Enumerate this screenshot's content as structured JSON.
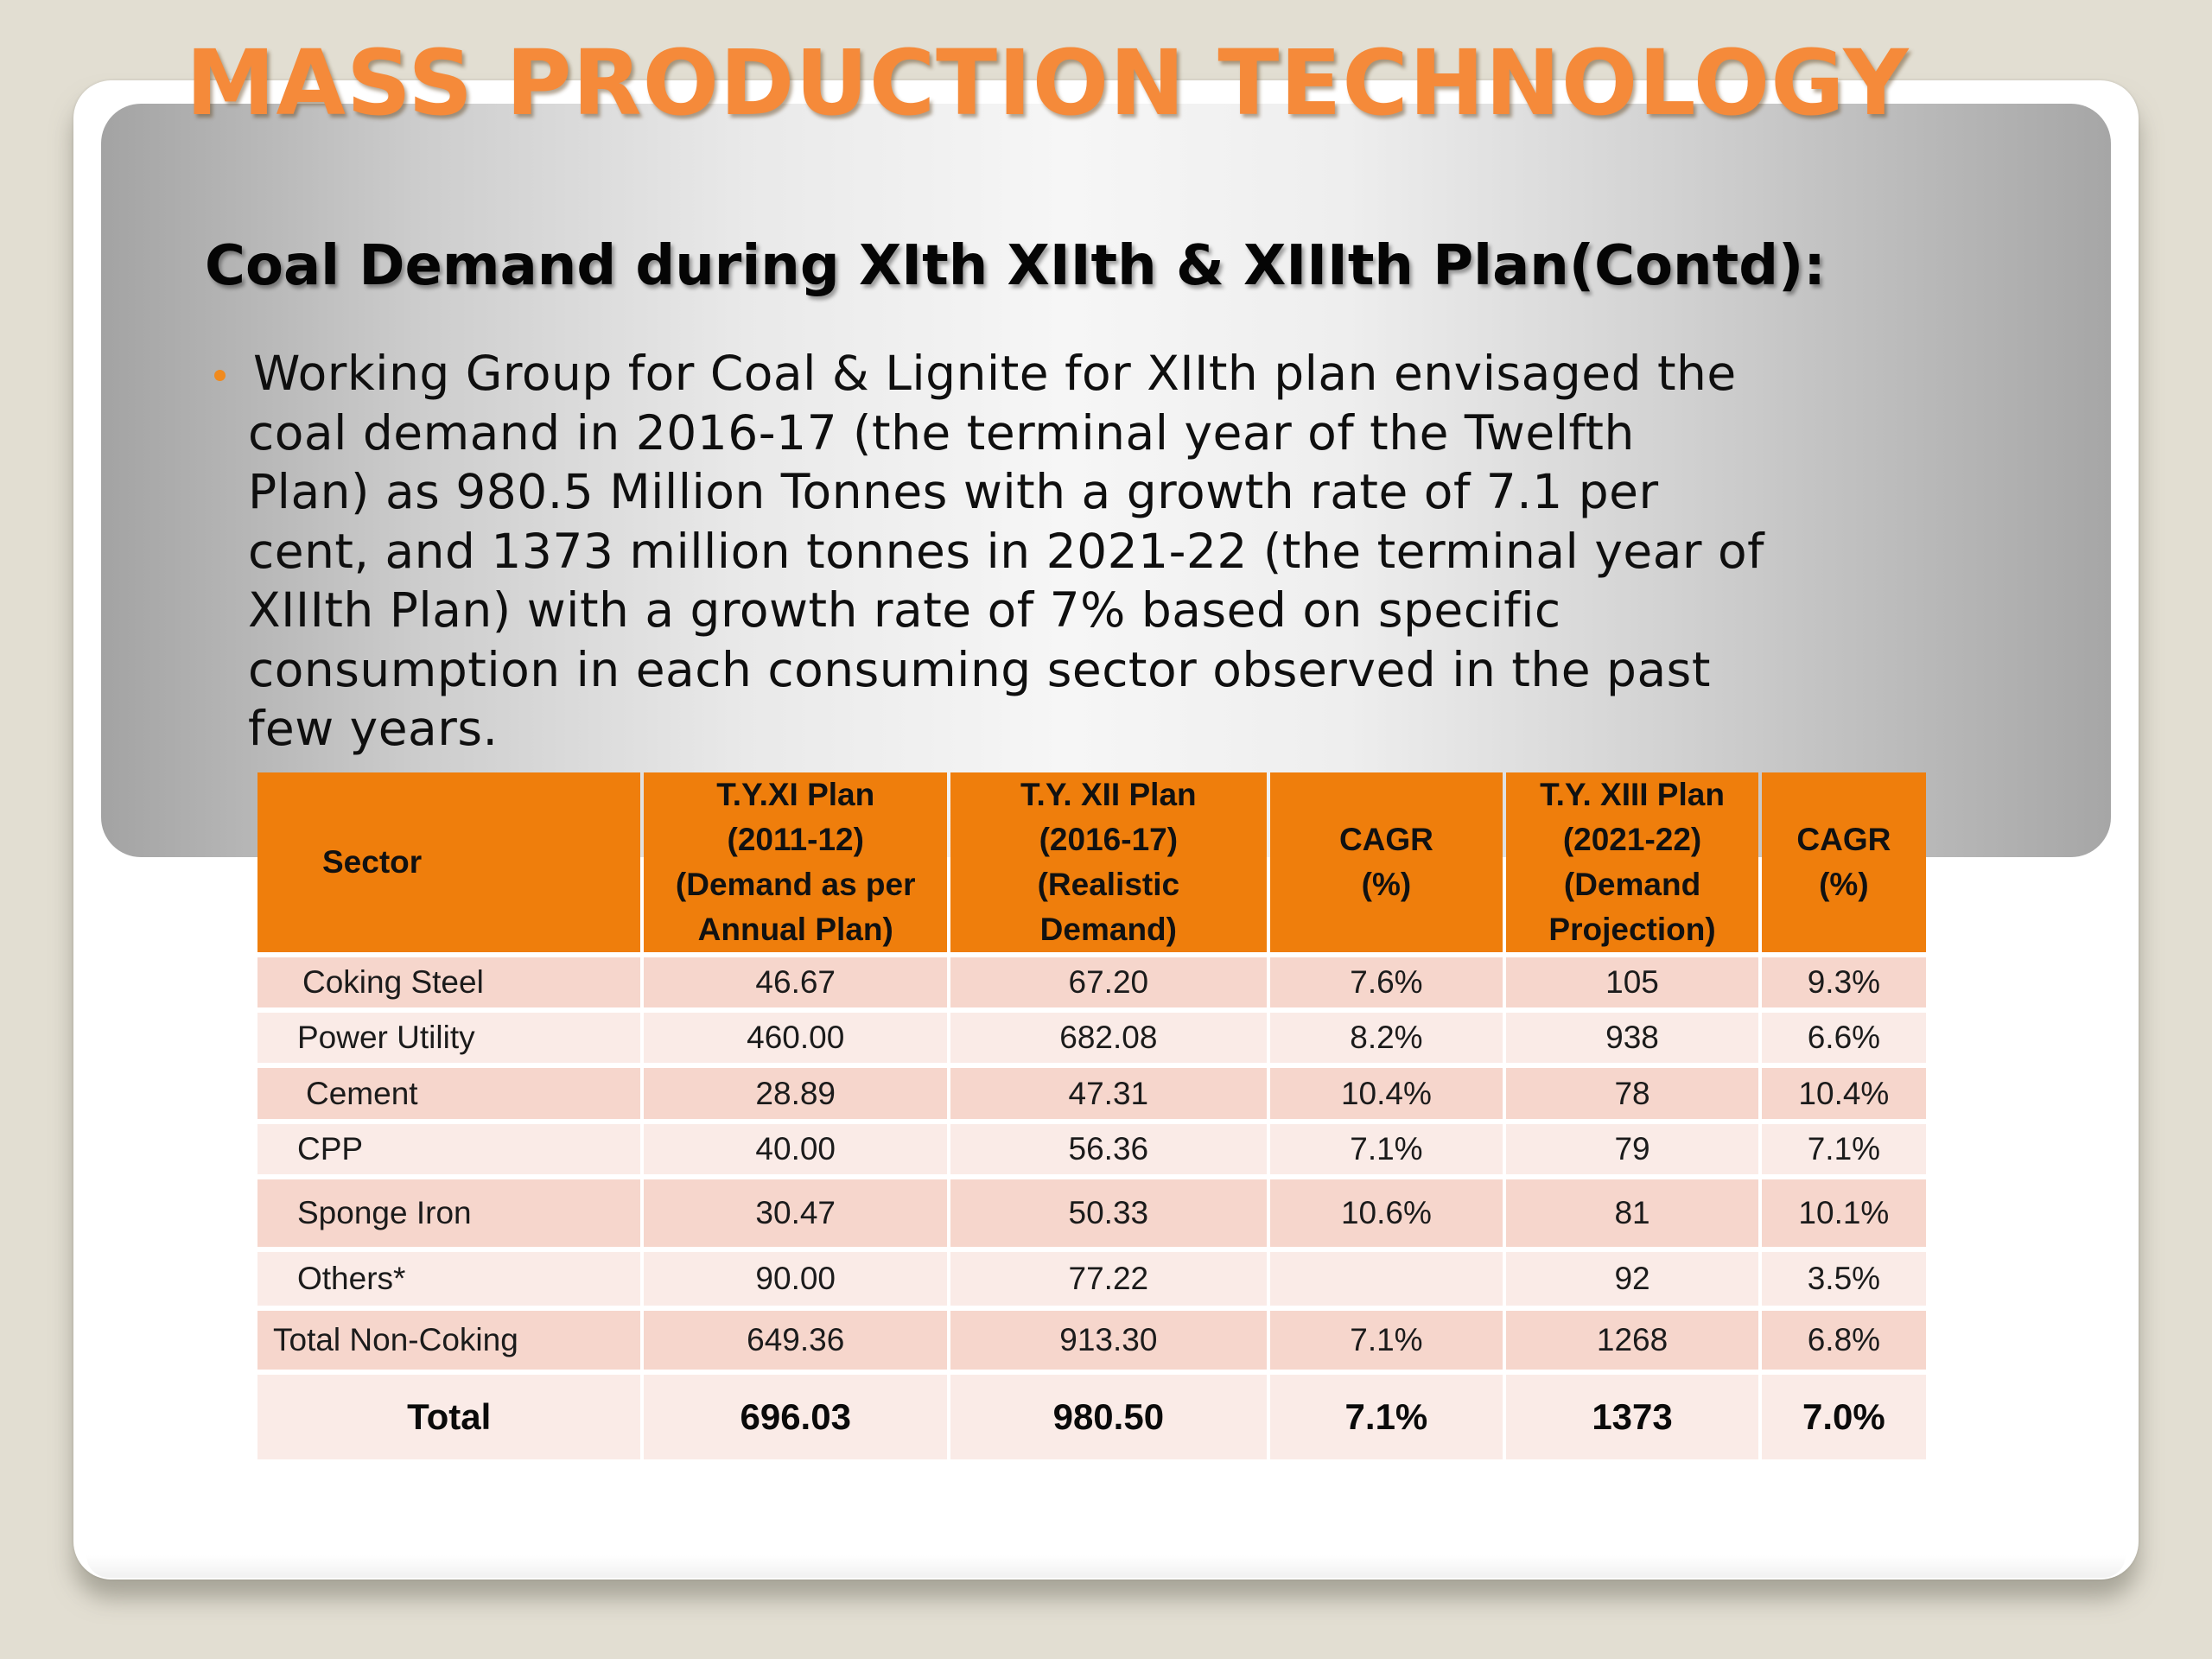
{
  "slide": {
    "title": "MASS PRODUCTION TECHNOLOGY",
    "subtitle": "Coal Demand during XIth XIIth & XIIIth Plan(Contd):",
    "bullet_lines": [
      "Working Group for Coal & Lignite for XIIth plan envisaged the",
      "coal demand in 2016-17 (the terminal year of the Twelfth",
      "Plan) as 980.5 Million Tonnes with a growth rate of 7.1 per",
      "cent, and 1373 million tonnes in 2021-22 (the terminal year of",
      "XIIIth Plan) with a growth rate of 7% based on specific",
      "consumption in each consuming sector observed in the past",
      "few years."
    ],
    "colors": {
      "title": "#f58a3a",
      "bullet": "#f08a1e",
      "table_header": "#ef7e0c",
      "row_odd": "#f6d6cc",
      "row_even": "#faebe7",
      "background": "#e2ded2"
    }
  },
  "table": {
    "headers": [
      [
        "Sector"
      ],
      [
        "T.Y.XI Plan",
        "(2011-12)",
        "(Demand as per",
        "Annual Plan)"
      ],
      [
        "T.Y. XII Plan",
        "(2016-17)",
        "(Realistic",
        "Demand)"
      ],
      [
        "CAGR",
        "(%)"
      ],
      [
        "T.Y. XIII Plan",
        "(2021-22)",
        "(Demand",
        "Projection)"
      ],
      [
        "CAGR",
        "(%)"
      ]
    ],
    "rows": [
      [
        "Coking Steel",
        "46.67",
        "67.20",
        "7.6%",
        "105",
        "9.3%"
      ],
      [
        "Power  Utility",
        "460.00",
        "682.08",
        "8.2%",
        "938",
        "6.6%"
      ],
      [
        "Cement",
        "28.89",
        "47.31",
        "10.4%",
        "78",
        "10.4%"
      ],
      [
        "CPP",
        "40.00",
        "56.36",
        "7.1%",
        "79",
        "7.1%"
      ],
      [
        "Sponge Iron",
        "30.47",
        "50.33",
        "10.6%",
        "81",
        "10.1%"
      ],
      [
        "Others*",
        "90.00",
        "77.22",
        "",
        "92",
        "3.5%"
      ],
      [
        "Total Non-Coking",
        "649.36",
        "913.30",
        "7.1%",
        "1268",
        "6.8%"
      ],
      [
        "Total",
        "696.03",
        "980.50",
        "7.1%",
        "1373",
        "7.0%"
      ]
    ]
  }
}
